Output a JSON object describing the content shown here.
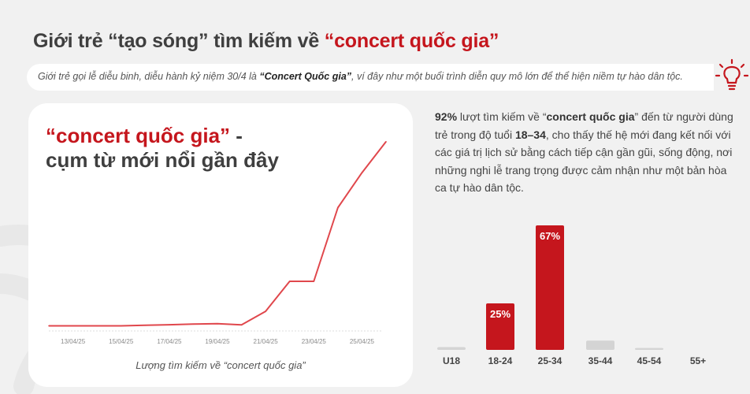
{
  "header": {
    "title_prefix": "Giới trẻ “tạo sóng” tìm kiếm về ",
    "title_highlight": "“concert quốc gia”"
  },
  "subtitle": {
    "before": "Giới trẻ gọi lễ diễu binh, diễu hành kỷ niệm 30/4 là ",
    "bold": "“Concert Quốc gia”",
    "after": ", ví đây như một buổi trình diễn quy mô lớn để thể hiện niềm tự hào dân tộc.",
    "icon": "lightbulb-icon"
  },
  "card": {
    "title_highlight": "“concert quốc gia”",
    "title_suffix": " -",
    "title_line2": "cụm từ mới nổi gần đây",
    "caption": "Lượng tìm kiếm về “concert quốc gia”"
  },
  "insight": {
    "pct": "92%",
    "t1": " lượt tìm kiếm về “",
    "keyword": "concert quốc gia",
    "t2": "” đến từ người dùng trẻ trong độ tuổi ",
    "age": "18–34",
    "t3": ", cho thấy thế hệ mới đang kết nối với các giá trị lịch sử bằng cách tiếp cận gần gũi, sống động, nơi những nghi lễ trang trọng được cảm nhận như một bản hòa ca tự hào dân tộc."
  },
  "colors": {
    "accent": "#c5161d",
    "line": "#e0474c",
    "gray_bar": "#d4d4d4"
  },
  "chart_data": [
    {
      "type": "line",
      "title": "",
      "xlabel": "Lượng tìm kiếm về “concert quốc gia”",
      "ylabel": "",
      "x": [
        "12/04/25",
        "13/04/25",
        "14/04/25",
        "15/04/25",
        "16/04/25",
        "17/04/25",
        "18/04/25",
        "19/04/25",
        "20/04/25",
        "21/04/25",
        "22/04/25",
        "23/04/25",
        "24/04/25",
        "25/04/25",
        "26/04/25"
      ],
      "tick_labels": [
        "13/04/25",
        "15/04/25",
        "17/04/25",
        "19/04/25",
        "21/04/25",
        "23/04/25",
        "25/04/25"
      ],
      "values": [
        1,
        1,
        1,
        1,
        1.3,
        1.6,
        1.9,
        2.1,
        1.5,
        8.5,
        24,
        24,
        62,
        80,
        96
      ],
      "ylim": [
        0,
        100
      ],
      "grid": false
    },
    {
      "type": "bar",
      "categories": [
        "U18",
        "18-24",
        "25-34",
        "35-44",
        "45-54",
        "55+"
      ],
      "values": [
        1.5,
        25,
        67,
        5,
        1,
        0
      ],
      "data_labels": [
        "",
        "25%",
        "67%",
        "",
        "",
        ""
      ],
      "highlight": [
        "18-24",
        "25-34"
      ],
      "ylim": [
        0,
        67
      ],
      "grid": false
    }
  ]
}
